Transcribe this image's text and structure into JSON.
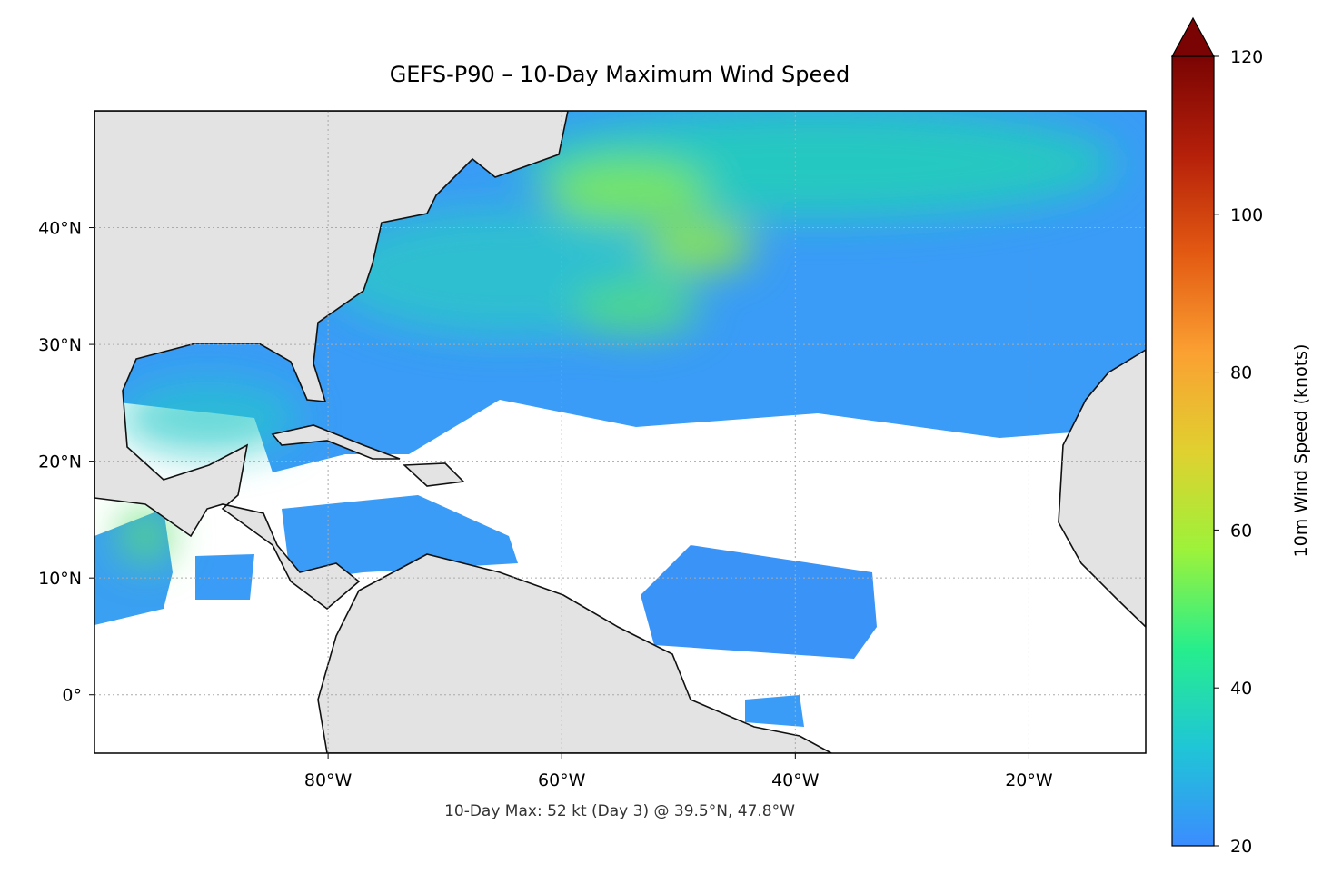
{
  "chart_data": {
    "type": "map",
    "title": "GEFS-P90 – 10-Day Maximum Wind Speed",
    "annotation": "10-Day Max: 52 kt (Day 3) @ 39.5°N, 47.8°W",
    "xlim": [
      -100,
      -10
    ],
    "ylim": [
      -5,
      50
    ],
    "xticks": [
      {
        "value": -80,
        "label": "80°W"
      },
      {
        "value": -60,
        "label": "60°W"
      },
      {
        "value": -40,
        "label": "40°W"
      },
      {
        "value": -20,
        "label": "20°W"
      }
    ],
    "yticks": [
      {
        "value": 0,
        "label": "0°"
      },
      {
        "value": 10,
        "label": "10°N"
      },
      {
        "value": 20,
        "label": "20°N"
      },
      {
        "value": 30,
        "label": "30°N"
      },
      {
        "value": 40,
        "label": "40°N"
      }
    ],
    "grid": true,
    "colorbar": {
      "label": "10m Wind Speed (knots)",
      "lim": [
        20,
        120
      ],
      "ticks": [
        20,
        40,
        60,
        80,
        100,
        120
      ],
      "colors": [
        "#3b8cff",
        "#1fc6d6",
        "#27ee8c",
        "#9df23a",
        "#e0d030",
        "#fba032",
        "#e35a12",
        "#b5200a",
        "#7a0403"
      ],
      "extend_color": "#7a0403"
    }
  }
}
